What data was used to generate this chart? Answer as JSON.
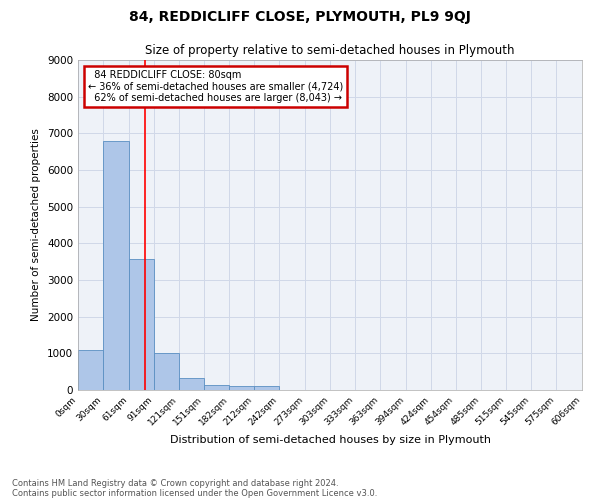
{
  "title1": "84, REDDICLIFF CLOSE, PLYMOUTH, PL9 9QJ",
  "title2": "Size of property relative to semi-detached houses in Plymouth",
  "xlabel": "Distribution of semi-detached houses by size in Plymouth",
  "ylabel": "Number of semi-detached properties",
  "bar_edges": [
    0,
    30,
    61,
    91,
    121,
    151,
    182,
    212,
    242,
    273,
    303,
    333,
    363,
    394,
    424,
    454,
    485,
    515,
    545,
    575,
    606
  ],
  "bar_heights": [
    1100,
    6800,
    3560,
    1000,
    340,
    140,
    100,
    100,
    0,
    0,
    0,
    0,
    0,
    0,
    0,
    0,
    0,
    0,
    0,
    0
  ],
  "bar_color": "#aec6e8",
  "bar_edge_color": "#5a8fc2",
  "grid_color": "#d0d8e8",
  "background_color": "#eef2f8",
  "annotation_box_color": "#cc0000",
  "property_label": "84 REDDICLIFF CLOSE: 80sqm",
  "smaller_pct": "36%",
  "smaller_count": "4,724",
  "larger_pct": "62%",
  "larger_count": "8,043",
  "red_line_x": 80,
  "ylim": [
    0,
    9000
  ],
  "yticks": [
    0,
    1000,
    2000,
    3000,
    4000,
    5000,
    6000,
    7000,
    8000,
    9000
  ],
  "xtick_labels": [
    "0sqm",
    "30sqm",
    "61sqm",
    "91sqm",
    "121sqm",
    "151sqm",
    "182sqm",
    "212sqm",
    "242sqm",
    "273sqm",
    "303sqm",
    "333sqm",
    "363sqm",
    "394sqm",
    "424sqm",
    "454sqm",
    "485sqm",
    "515sqm",
    "545sqm",
    "575sqm",
    "606sqm"
  ],
  "footer1": "Contains HM Land Registry data © Crown copyright and database right 2024.",
  "footer2": "Contains public sector information licensed under the Open Government Licence v3.0."
}
